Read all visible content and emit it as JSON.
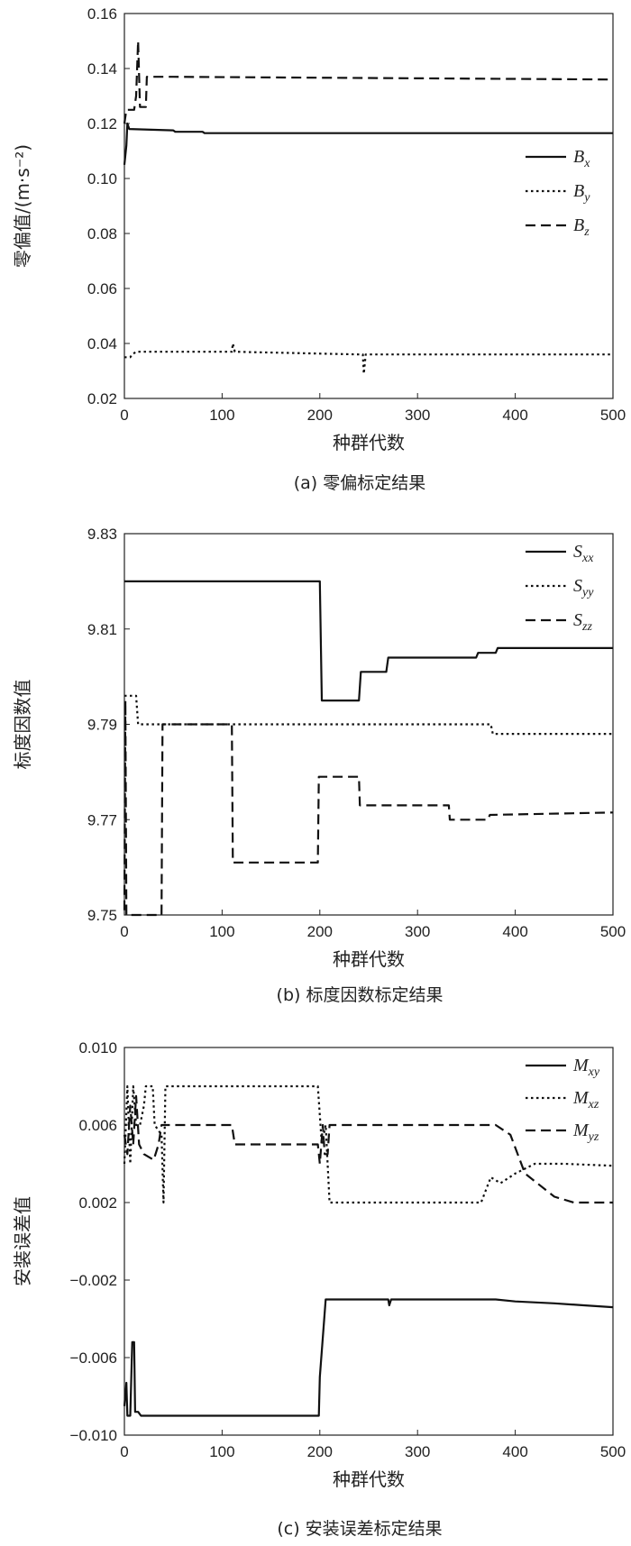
{
  "chart_data": [
    {
      "type": "line",
      "caption": "(a) 零偏标定结果",
      "xlabel": "种群代数",
      "ylabel": "零偏值/(m·s⁻²)",
      "xlim": [
        0,
        500
      ],
      "ylim": [
        0.02,
        0.16
      ],
      "xticks": [
        "0",
        "100",
        "200",
        "300",
        "400",
        "500"
      ],
      "yticks": [
        "0.02",
        "0.04",
        "0.06",
        "0.08",
        "0.10",
        "0.12",
        "0.14",
        "0.16"
      ],
      "legend_position": "right",
      "series": [
        {
          "name": "B",
          "sub": "x",
          "style": "solid",
          "points": [
            [
              0,
              0.105
            ],
            [
              2,
              0.112
            ],
            [
              3,
              0.12
            ],
            [
              5,
              0.118
            ],
            [
              50,
              0.1175
            ],
            [
              52,
              0.117
            ],
            [
              80,
              0.117
            ],
            [
              82,
              0.1165
            ],
            [
              500,
              0.1165
            ]
          ]
        },
        {
          "name": "B",
          "sub": "y",
          "style": "dotted",
          "points": [
            [
              0,
              0.035
            ],
            [
              6,
              0.035
            ],
            [
              8,
              0.036
            ],
            [
              12,
              0.037
            ],
            [
              110,
              0.037
            ],
            [
              111,
              0.04
            ],
            [
              113,
              0.037
            ],
            [
              240,
              0.036
            ],
            [
              244,
              0.036
            ],
            [
              245,
              0.029
            ],
            [
              247,
              0.036
            ],
            [
              500,
              0.036
            ]
          ]
        },
        {
          "name": "B",
          "sub": "z",
          "style": "dashed",
          "points": [
            [
              0,
              0.12
            ],
            [
              2,
              0.125
            ],
            [
              10,
              0.125
            ],
            [
              12,
              0.13
            ],
            [
              14,
              0.15
            ],
            [
              16,
              0.126
            ],
            [
              22,
              0.126
            ],
            [
              23,
              0.137
            ],
            [
              50,
              0.137
            ],
            [
              500,
              0.136
            ]
          ]
        }
      ]
    },
    {
      "type": "line",
      "caption": "(b) 标度因数标定结果",
      "xlabel": "种群代数",
      "ylabel": "标度因数值",
      "xlim": [
        0,
        500
      ],
      "ylim": [
        9.75,
        9.83
      ],
      "xticks": [
        "0",
        "100",
        "200",
        "300",
        "400",
        "500"
      ],
      "yticks": [
        "9.75",
        "9.77",
        "9.79",
        "9.81",
        "9.83"
      ],
      "legend_position": "top-right",
      "series": [
        {
          "name": "S",
          "sub": "xx",
          "style": "solid",
          "points": [
            [
              0,
              9.82
            ],
            [
              200,
              9.82
            ],
            [
              202,
              9.795
            ],
            [
              240,
              9.795
            ],
            [
              242,
              9.801
            ],
            [
              268,
              9.801
            ],
            [
              270,
              9.804
            ],
            [
              360,
              9.804
            ],
            [
              362,
              9.805
            ],
            [
              380,
              9.805
            ],
            [
              382,
              9.806
            ],
            [
              500,
              9.806
            ]
          ]
        },
        {
          "name": "S",
          "sub": "yy",
          "style": "dotted",
          "points": [
            [
              0,
              9.796
            ],
            [
              12,
              9.796
            ],
            [
              14,
              9.79
            ],
            [
              375,
              9.79
            ],
            [
              377,
              9.788
            ],
            [
              500,
              9.788
            ]
          ]
        },
        {
          "name": "S",
          "sub": "zz",
          "style": "dashed",
          "points": [
            [
              0,
              9.751
            ],
            [
              1,
              9.795
            ],
            [
              2,
              9.75
            ],
            [
              38,
              9.75
            ],
            [
              39,
              9.79
            ],
            [
              110,
              9.79
            ],
            [
              111,
              9.761
            ],
            [
              198,
              9.761
            ],
            [
              199,
              9.779
            ],
            [
              240,
              9.779
            ],
            [
              241,
              9.773
            ],
            [
              332,
              9.773
            ],
            [
              333,
              9.77
            ],
            [
              372,
              9.77
            ],
            [
              374,
              9.771
            ],
            [
              500,
              9.7715
            ]
          ]
        }
      ]
    },
    {
      "type": "line",
      "caption": "(c) 安装误差标定结果",
      "xlabel": "种群代数",
      "ylabel": "安装误差值",
      "xlim": [
        0,
        500
      ],
      "ylim": [
        -0.01,
        0.01
      ],
      "xticks": [
        "0",
        "100",
        "200",
        "300",
        "400",
        "500"
      ],
      "yticks": [
        "−0.010",
        "−0.006",
        "−0.002",
        "0.002",
        "0.006",
        "0.010"
      ],
      "legend_position": "top-right",
      "series": [
        {
          "name": "M",
          "sub": "xy",
          "style": "solid",
          "points": [
            [
              0,
              -0.0085
            ],
            [
              2,
              -0.0073
            ],
            [
              3,
              -0.009
            ],
            [
              6,
              -0.009
            ],
            [
              8,
              -0.0052
            ],
            [
              10,
              -0.0052
            ],
            [
              11,
              -0.0088
            ],
            [
              14,
              -0.0088
            ],
            [
              17,
              -0.009
            ],
            [
              199,
              -0.009
            ],
            [
              200,
              -0.007
            ],
            [
              206,
              -0.003
            ],
            [
              270,
              -0.003
            ],
            [
              271,
              -0.0033
            ],
            [
              273,
              -0.003
            ],
            [
              380,
              -0.003
            ],
            [
              400,
              -0.0031
            ],
            [
              440,
              -0.0032
            ],
            [
              470,
              -0.0033
            ],
            [
              500,
              -0.0034
            ]
          ]
        },
        {
          "name": "M",
          "sub": "xz",
          "style": "dotted",
          "points": [
            [
              0,
              0.004
            ],
            [
              3,
              0.008
            ],
            [
              6,
              0.004
            ],
            [
              9,
              0.008
            ],
            [
              12,
              0.006
            ],
            [
              16,
              0.006
            ],
            [
              20,
              0.007
            ],
            [
              22,
              0.008
            ],
            [
              29,
              0.008
            ],
            [
              31,
              0.006
            ],
            [
              38,
              0.0055
            ],
            [
              40,
              0.002
            ],
            [
              42,
              0.008
            ],
            [
              198,
              0.008
            ],
            [
              202,
              0.005
            ],
            [
              206,
              0.006
            ],
            [
              210,
              0.002
            ],
            [
              365,
              0.002
            ],
            [
              375,
              0.0033
            ],
            [
              385,
              0.003
            ],
            [
              400,
              0.0035
            ],
            [
              420,
              0.004
            ],
            [
              450,
              0.004
            ],
            [
              500,
              0.0039
            ]
          ]
        },
        {
          "name": "M",
          "sub": "yz",
          "style": "dashed",
          "points": [
            [
              0,
              0.0055
            ],
            [
              3,
              0.0045
            ],
            [
              6,
              0.007
            ],
            [
              9,
              0.005
            ],
            [
              12,
              0.0075
            ],
            [
              15,
              0.005
            ],
            [
              20,
              0.0045
            ],
            [
              30,
              0.0042
            ],
            [
              35,
              0.005
            ],
            [
              38,
              0.006
            ],
            [
              110,
              0.006
            ],
            [
              113,
              0.005
            ],
            [
              198,
              0.005
            ],
            [
              200,
              0.004
            ],
            [
              203,
              0.006
            ],
            [
              205,
              0.0045
            ],
            [
              208,
              0.0045
            ],
            [
              210,
              0.006
            ],
            [
              380,
              0.006
            ],
            [
              395,
              0.0055
            ],
            [
              410,
              0.0035
            ],
            [
              440,
              0.0023
            ],
            [
              460,
              0.002
            ],
            [
              500,
              0.002
            ]
          ]
        }
      ]
    }
  ]
}
